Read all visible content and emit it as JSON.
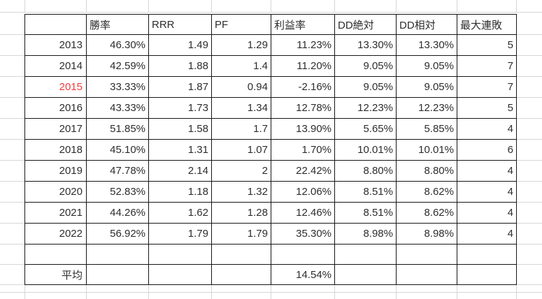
{
  "sheet": {
    "header": {
      "cells": [
        "",
        "勝率",
        "RRR",
        "PF",
        "利益率",
        "DD絶対",
        "DD相対",
        "最大連敗"
      ]
    },
    "rows": [
      {
        "year": "2013",
        "highlight": false,
        "cells": [
          "46.30%",
          "1.49",
          "1.29",
          "11.23%",
          "13.30%",
          "13.30%",
          "5"
        ]
      },
      {
        "year": "2014",
        "highlight": false,
        "cells": [
          "42.59%",
          "1.88",
          "1.4",
          "11.20%",
          "9.05%",
          "9.05%",
          "7"
        ]
      },
      {
        "year": "2015",
        "highlight": true,
        "cells": [
          "33.33%",
          "1.87",
          "0.94",
          "-2.16%",
          "9.05%",
          "9.05%",
          "7"
        ]
      },
      {
        "year": "2016",
        "highlight": false,
        "cells": [
          "43.33%",
          "1.73",
          "1.34",
          "12.78%",
          "12.23%",
          "12.23%",
          "5"
        ]
      },
      {
        "year": "2017",
        "highlight": false,
        "cells": [
          "51.85%",
          "1.58",
          "1.7",
          "13.90%",
          "5.65%",
          "5.85%",
          "4"
        ]
      },
      {
        "year": "2018",
        "highlight": false,
        "cells": [
          "45.10%",
          "1.31",
          "1.07",
          "1.70%",
          "10.01%",
          "10.01%",
          "6"
        ]
      },
      {
        "year": "2019",
        "highlight": false,
        "cells": [
          "47.78%",
          "2.14",
          "2",
          "22.42%",
          "8.80%",
          "8.80%",
          "4"
        ]
      },
      {
        "year": "2020",
        "highlight": false,
        "cells": [
          "52.83%",
          "1.18",
          "1.32",
          "12.06%",
          "8.51%",
          "8.62%",
          "4"
        ]
      },
      {
        "year": "2021",
        "highlight": false,
        "cells": [
          "44.26%",
          "1.62",
          "1.28",
          "12.46%",
          "8.51%",
          "8.62%",
          "4"
        ]
      },
      {
        "year": "2022",
        "highlight": false,
        "cells": [
          "56.92%",
          "1.79",
          "1.79",
          "35.30%",
          "8.98%",
          "8.98%",
          "4"
        ]
      },
      {
        "year": "",
        "highlight": false,
        "redacted_col": 3,
        "cells": [
          "",
          "",
          "",
          "",
          "",
          "",
          ""
        ]
      },
      {
        "year": "平均",
        "highlight": false,
        "cells": [
          "",
          "",
          "",
          "14.54%",
          "",
          "",
          ""
        ]
      }
    ],
    "colors": {
      "text": "#2d2d2d",
      "highlight_text": "#f23b3b",
      "table_border": "#161616",
      "gridline": "#d6d6d6"
    }
  }
}
